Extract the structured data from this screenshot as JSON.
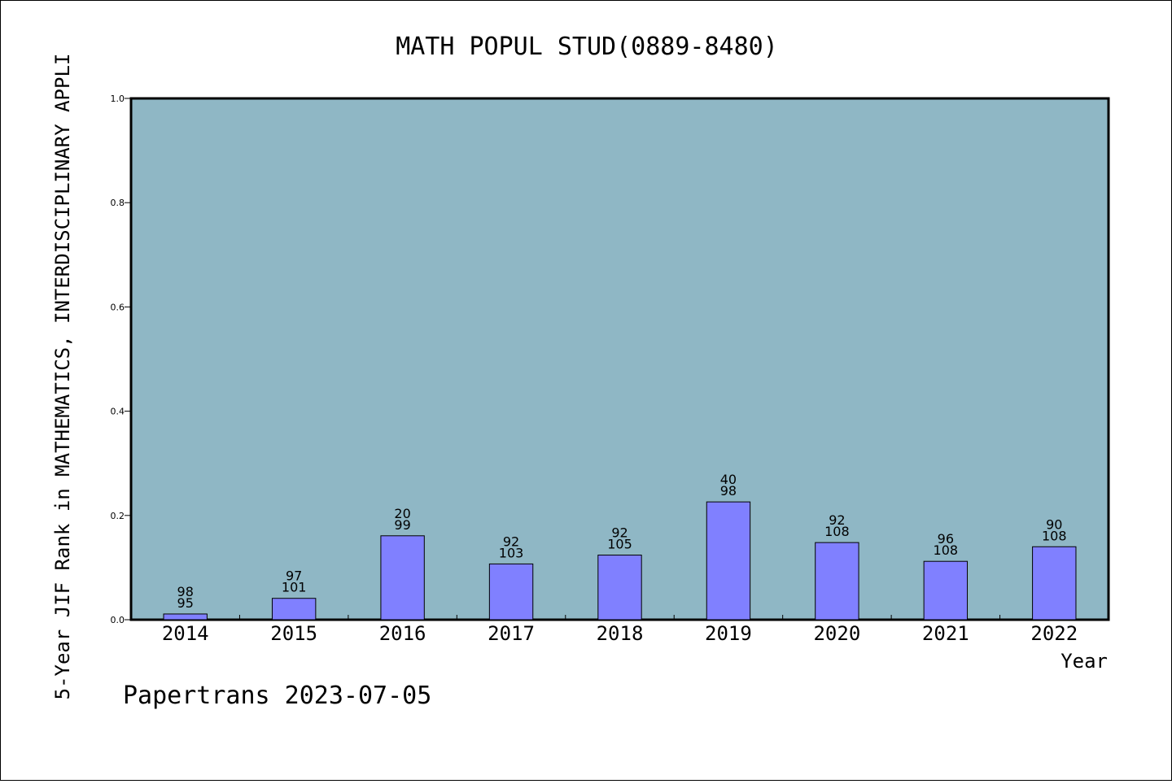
{
  "chart_data": {
    "type": "bar",
    "title": "MATH POPUL STUD(0889-8480)",
    "xlabel": "Year",
    "ylabel": "5-Year JIF Rank in MATHEMATICS, INTERDISCIPLINARY APPLI",
    "ylim": [
      0,
      1.0
    ],
    "yticks": [
      "0.0",
      "0.2",
      "0.4",
      "0.6",
      "0.8",
      "1.0"
    ],
    "categories": [
      "2014",
      "2015",
      "2016",
      "2017",
      "2018",
      "2019",
      "2020",
      "2021",
      "2022"
    ],
    "values": [
      0.011,
      0.041,
      0.161,
      0.107,
      0.124,
      0.226,
      0.148,
      0.112,
      0.14
    ],
    "labels": [
      {
        "rank": "98",
        "total": "95"
      },
      {
        "rank": "97",
        "total": "101"
      },
      {
        "rank": "20",
        "total": "99"
      },
      {
        "rank": "92",
        "total": "103"
      },
      {
        "rank": "92",
        "total": "105"
      },
      {
        "rank": "40",
        "total": "98"
      },
      {
        "rank": "92",
        "total": "108"
      },
      {
        "rank": "96",
        "total": "108"
      },
      {
        "rank": "90",
        "total": "108"
      }
    ],
    "grid": false,
    "colors": {
      "plot_bg": "#8fb7c5",
      "bar": "#8080ff",
      "bar_edge": "#000000"
    }
  },
  "footer": "Papertrans 2023-07-05"
}
